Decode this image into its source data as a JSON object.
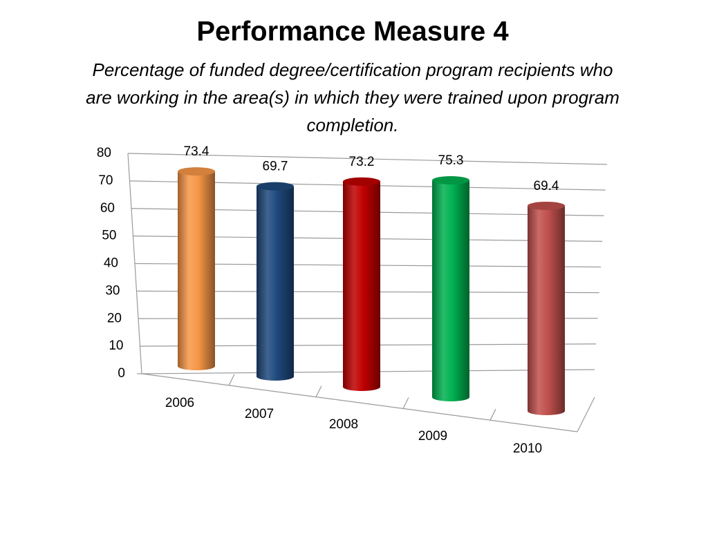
{
  "chart_data": {
    "type": "cylinder-bar",
    "title": "Performance  Measure 4",
    "subtitle": [
      "Percentage of funded degree/certification program recipients who",
      "are working in the area(s) in which they were trained upon program",
      "completion."
    ],
    "categories": [
      "2006",
      "2007",
      "2008",
      "2009",
      "2010"
    ],
    "values": [
      73.4,
      69.7,
      73.2,
      75.3,
      69.4
    ],
    "colors": [
      "#f79646",
      "#1f497d",
      "#c00000",
      "#00b050",
      "#c0504d"
    ],
    "ylim": [
      0,
      80
    ],
    "yticks": [
      0,
      10,
      20,
      30,
      40,
      50,
      60,
      70,
      80
    ],
    "grid": true
  }
}
